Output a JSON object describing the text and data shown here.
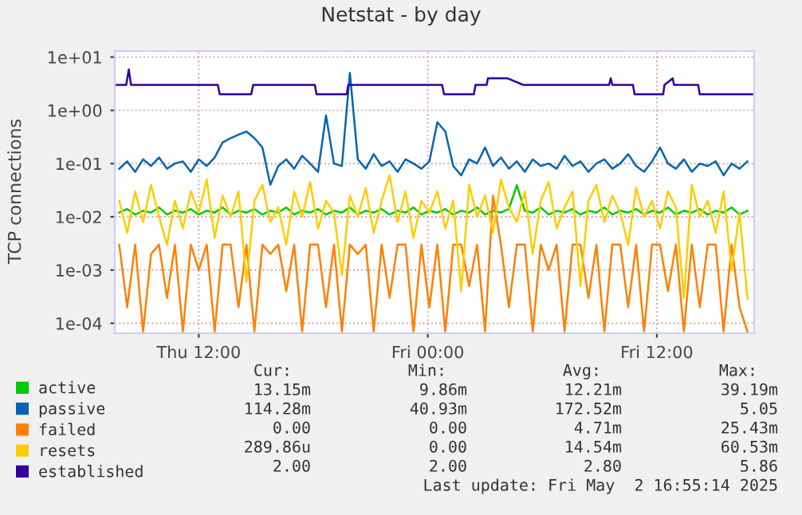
{
  "chart_data": {
    "type": "line",
    "title": "Netstat - by day",
    "ylabel": "TCP connections",
    "log": "y",
    "grid": true,
    "legend": "bottom",
    "xlim": [
      "2025-05-01T07:36",
      "2025-05-02T17:06"
    ],
    "xticks": [
      {
        "value": "2025-05-01T12:00",
        "label": "Thu 12:00"
      },
      {
        "value": "2025-05-02T00:00",
        "label": "Fri 00:00"
      },
      {
        "value": "2025-05-02T12:00",
        "label": "Fri 12:00"
      }
    ],
    "ylim": [
      6.5e-05,
      13
    ],
    "yticks": [
      {
        "value": 0.0001,
        "label": "1e-04"
      },
      {
        "value": 0.001,
        "label": "1e-03"
      },
      {
        "value": 0.01,
        "label": "1e-02"
      },
      {
        "value": 0.1,
        "label": "1e-01"
      },
      {
        "value": 1,
        "label": "1e+00"
      },
      {
        "value": 10,
        "label": "1e+01"
      }
    ],
    "x": [
      "2025-05-01T07:50",
      "2025-05-01T08:15",
      "2025-05-01T08:40",
      "2025-05-01T09:05",
      "2025-05-01T09:30",
      "2025-05-01T09:55",
      "2025-05-01T10:20",
      "2025-05-01T10:45",
      "2025-05-01T11:10",
      "2025-05-01T11:35",
      "2025-05-01T12:00",
      "2025-05-01T12:25",
      "2025-05-01T12:50",
      "2025-05-01T13:15",
      "2025-05-01T13:40",
      "2025-05-01T14:05",
      "2025-05-01T14:30",
      "2025-05-01T14:55",
      "2025-05-01T15:20",
      "2025-05-01T15:45",
      "2025-05-01T16:10",
      "2025-05-01T16:35",
      "2025-05-01T17:00",
      "2025-05-01T17:25",
      "2025-05-01T17:50",
      "2025-05-01T18:15",
      "2025-05-01T18:40",
      "2025-05-01T19:05",
      "2025-05-01T19:30",
      "2025-05-01T19:55",
      "2025-05-01T20:20",
      "2025-05-01T20:45",
      "2025-05-01T21:10",
      "2025-05-01T21:35",
      "2025-05-01T22:00",
      "2025-05-01T22:25",
      "2025-05-01T22:50",
      "2025-05-01T23:15",
      "2025-05-01T23:40",
      "2025-05-02T00:05",
      "2025-05-02T00:30",
      "2025-05-02T00:55",
      "2025-05-02T01:20",
      "2025-05-02T01:45",
      "2025-05-02T02:10",
      "2025-05-02T02:35",
      "2025-05-02T03:00",
      "2025-05-02T03:25",
      "2025-05-02T03:50",
      "2025-05-02T04:15",
      "2025-05-02T04:40",
      "2025-05-02T05:05",
      "2025-05-02T05:30",
      "2025-05-02T05:55",
      "2025-05-02T06:20",
      "2025-05-02T06:45",
      "2025-05-02T07:10",
      "2025-05-02T07:35",
      "2025-05-02T08:00",
      "2025-05-02T08:25",
      "2025-05-02T08:50",
      "2025-05-02T09:15",
      "2025-05-02T09:40",
      "2025-05-02T10:05",
      "2025-05-02T10:30",
      "2025-05-02T10:55",
      "2025-05-02T11:20",
      "2025-05-02T11:45",
      "2025-05-02T12:10",
      "2025-05-02T12:35",
      "2025-05-02T13:00",
      "2025-05-02T13:25",
      "2025-05-02T13:50",
      "2025-05-02T14:15",
      "2025-05-02T14:40",
      "2025-05-02T15:05",
      "2025-05-02T15:30",
      "2025-05-02T15:55",
      "2025-05-02T16:20",
      "2025-05-02T16:45"
    ],
    "series": [
      {
        "name": "active",
        "color": "#00cc00",
        "values": [
          0.012,
          0.014,
          0.011,
          0.013,
          0.012,
          0.015,
          0.011,
          0.013,
          0.012,
          0.014,
          0.011,
          0.013,
          0.012,
          0.015,
          0.011,
          0.013,
          0.012,
          0.014,
          0.011,
          0.013,
          0.012,
          0.015,
          0.011,
          0.013,
          0.012,
          0.014,
          0.011,
          0.013,
          0.012,
          0.015,
          0.011,
          0.013,
          0.012,
          0.014,
          0.011,
          0.013,
          0.012,
          0.015,
          0.011,
          0.013,
          0.012,
          0.014,
          0.011,
          0.013,
          0.012,
          0.015,
          0.011,
          0.013,
          0.012,
          0.014,
          0.0392,
          0.013,
          0.012,
          0.015,
          0.011,
          0.013,
          0.012,
          0.014,
          0.011,
          0.013,
          0.012,
          0.015,
          0.011,
          0.013,
          0.012,
          0.014,
          0.011,
          0.013,
          0.012,
          0.015,
          0.011,
          0.013,
          0.012,
          0.014,
          0.011,
          0.013,
          0.012,
          0.015,
          0.011,
          0.013
        ]
      },
      {
        "name": "passive",
        "color": "#0066b3",
        "values": [
          0.08,
          0.11,
          0.07,
          0.12,
          0.09,
          0.13,
          0.08,
          0.1,
          0.11,
          0.07,
          0.12,
          0.09,
          0.13,
          0.25,
          0.3,
          0.35,
          0.4,
          0.3,
          0.2,
          0.04,
          0.09,
          0.12,
          0.08,
          0.14,
          0.1,
          0.07,
          0.8,
          0.1,
          0.09,
          5.05,
          0.12,
          0.08,
          0.15,
          0.09,
          0.11,
          0.07,
          0.12,
          0.1,
          0.08,
          0.11,
          0.6,
          0.4,
          0.09,
          0.06,
          0.12,
          0.1,
          0.2,
          0.09,
          0.13,
          0.08,
          0.11,
          0.07,
          0.12,
          0.09,
          0.1,
          0.08,
          0.14,
          0.09,
          0.11,
          0.07,
          0.1,
          0.12,
          0.08,
          0.1,
          0.15,
          0.09,
          0.07,
          0.11,
          0.2,
          0.1,
          0.08,
          0.12,
          0.07,
          0.1,
          0.09,
          0.11,
          0.06,
          0.1,
          0.08,
          0.11
        ]
      },
      {
        "name": "failed",
        "color": "#ff8000",
        "values": [
          0.003,
          0.0002,
          0.003,
          7e-05,
          0.002,
          0.003,
          0.0003,
          0.003,
          7e-05,
          0.003,
          0.001,
          0.003,
          7e-05,
          0.003,
          0.003,
          0.0002,
          0.003,
          7e-05,
          0.003,
          0.002,
          0.003,
          0.0004,
          0.003,
          7e-05,
          0.003,
          0.003,
          0.0002,
          0.003,
          7e-05,
          0.003,
          0.002,
          0.003,
          7e-05,
          0.003,
          0.0003,
          0.003,
          0.003,
          7e-05,
          0.003,
          0.0002,
          0.003,
          7e-05,
          0.003,
          0.003,
          0.0005,
          0.003,
          7e-05,
          0.025,
          0.003,
          0.0002,
          0.003,
          0.003,
          7e-05,
          0.003,
          0.001,
          0.003,
          7e-05,
          0.003,
          0.003,
          0.0003,
          0.003,
          7e-05,
          0.003,
          0.003,
          0.0002,
          0.003,
          7e-05,
          0.003,
          0.003,
          0.0004,
          0.003,
          7e-05,
          0.003,
          0.0002,
          0.003,
          0.003,
          7e-05,
          0.003,
          0.0002,
          7e-05
        ]
      },
      {
        "name": "resets",
        "color": "#ffcc00",
        "values": [
          0.02,
          0.005,
          0.03,
          0.008,
          0.04,
          0.01,
          0.003,
          0.02,
          0.006,
          0.03,
          0.012,
          0.05,
          0.004,
          0.025,
          0.01,
          0.03,
          0.0006,
          0.02,
          0.04,
          0.008,
          0.015,
          0.003,
          0.03,
          0.01,
          0.045,
          0.006,
          0.02,
          0.012,
          0.0008,
          0.025,
          0.01,
          0.035,
          0.005,
          0.02,
          0.0605,
          0.008,
          0.03,
          0.004,
          0.02,
          0.012,
          0.03,
          0.006,
          0.02,
          0.0004,
          0.04,
          0.01,
          0.025,
          0.005,
          0.05,
          0.015,
          0.008,
          0.03,
          0.002,
          0.02,
          0.045,
          0.006,
          0.015,
          0.03,
          0.0005,
          0.02,
          0.04,
          0.008,
          0.025,
          0.012,
          0.003,
          0.035,
          0.01,
          0.02,
          0.006,
          0.03,
          0.015,
          0.0003,
          0.04,
          0.01,
          0.02,
          0.005,
          0.03,
          0.001,
          0.012,
          0.00029
        ]
      },
      {
        "name": "established",
        "color": "#330099",
        "x": [
          "2025-05-01T07:40",
          "2025-05-01T08:12",
          "2025-05-01T08:20",
          "2025-05-01T08:27",
          "2025-05-01T13:00",
          "2025-05-01T13:06",
          "2025-05-01T14:45",
          "2025-05-01T14:51",
          "2025-05-01T18:05",
          "2025-05-01T18:10",
          "2025-05-01T19:45",
          "2025-05-01T19:50",
          "2025-05-02T00:45",
          "2025-05-02T00:51",
          "2025-05-02T02:25",
          "2025-05-02T02:30",
          "2025-05-02T03:05",
          "2025-05-02T03:09",
          "2025-05-02T04:10",
          "2025-05-02T05:00",
          "2025-05-02T09:30",
          "2025-05-02T09:35",
          "2025-05-02T09:40",
          "2025-05-02T10:45",
          "2025-05-02T10:50",
          "2025-05-02T12:20",
          "2025-05-02T12:24",
          "2025-05-02T12:50",
          "2025-05-02T12:54",
          "2025-05-02T14:10",
          "2025-05-02T14:15",
          "2025-05-02T17:00"
        ],
        "values": [
          3,
          3,
          5.86,
          3,
          3,
          2,
          2,
          3,
          3,
          2,
          2,
          3,
          3,
          2,
          2,
          3,
          3,
          4,
          4,
          3,
          3,
          4,
          3,
          3,
          2,
          2,
          3,
          4,
          3,
          3,
          2,
          2
        ]
      }
    ],
    "annotations": [
      "Cur:",
      "Min:",
      "Avg:",
      "Max:",
      "13.15m",
      "9.86m",
      "12.21m",
      "39.19m",
      "114.28m",
      "40.93m",
      "172.52m",
      "5.05",
      "0.00",
      "0.00",
      "4.71m",
      "25.43m",
      "289.86u",
      "0.00",
      "14.54m",
      "60.53m",
      "2.00",
      "2.00",
      "2.80",
      "5.86",
      "Last update: Fri May  2 16:55:14 2025"
    ]
  }
}
